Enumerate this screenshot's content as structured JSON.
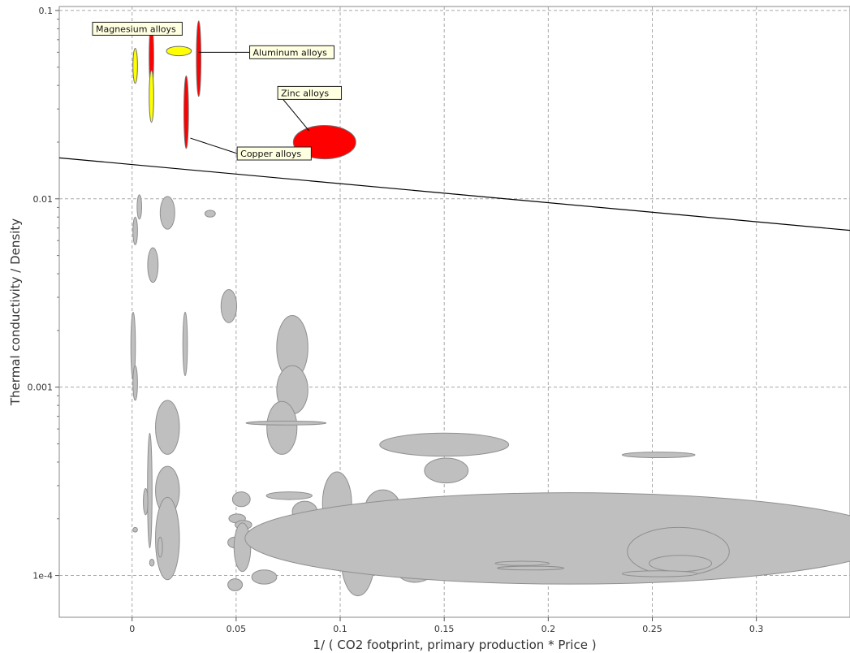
{
  "chart_data": {
    "type": "scatter",
    "subtype": "bubble-ellipses",
    "title": "",
    "xlabel": "1/ ( CO2 footprint, primary production * Price )",
    "ylabel": "Thermal conductivity / Density",
    "xlim": [
      -0.035,
      0.345
    ],
    "ylim": [
      6e-05,
      0.105
    ],
    "yscale": "log",
    "grid": true,
    "x_ticks": [
      {
        "value": 0,
        "label": "0"
      },
      {
        "value": 0.05,
        "label": "0.05"
      },
      {
        "value": 0.1,
        "label": "0.1"
      },
      {
        "value": 0.15,
        "label": "0.15"
      },
      {
        "value": 0.2,
        "label": "0.2"
      },
      {
        "value": 0.25,
        "label": "0.25"
      },
      {
        "value": 0.3,
        "label": "0.3"
      }
    ],
    "y_ticks": [
      {
        "value": 0.0001,
        "label": "1e-4"
      },
      {
        "value": 0.001,
        "label": "0.001"
      },
      {
        "value": 0.01,
        "label": "0.01"
      },
      {
        "value": 0.1,
        "label": "0.1"
      }
    ],
    "colors": {
      "red": "#ff0000",
      "yellow": "#ffff00",
      "gray": "#bfbfbf",
      "grid": "#a8a8a8",
      "label_bg": "#ffffe1"
    },
    "guideline": {
      "x": [
        -0.035,
        0.345
      ],
      "y": [
        0.0165,
        0.0068
      ]
    },
    "annotations": [
      {
        "text": "Magnesium alloys",
        "x": -0.019,
        "y": 0.08,
        "target_x": 0.0095,
        "target_y": 0.075
      },
      {
        "text": "Aluminum alloys",
        "x": 0.0565,
        "y": 0.06,
        "target_x": 0.032,
        "target_y": 0.06
      },
      {
        "text": "Zinc alloys",
        "x": 0.07,
        "y": 0.0365,
        "target_x": 0.085,
        "target_y": 0.023
      },
      {
        "text": "Copper alloys",
        "x": 0.0505,
        "y": 0.0174,
        "target_x": 0.028,
        "target_y": 0.021
      }
    ],
    "series": [
      {
        "name": "",
        "color": "red",
        "points": [
          {
            "x": 0.0093,
            "y_min": 0.038,
            "y_max": 0.085
          },
          {
            "x": 0.032,
            "y_min": 0.035,
            "y_max": 0.088
          },
          {
            "x": 0.026,
            "y_min": 0.0185,
            "y_max": 0.045
          },
          {
            "x": 0.0925,
            "x_min": 0.0775,
            "x_max": 0.1075,
            "y_min": 0.0163,
            "y_max": 0.0245
          }
        ]
      },
      {
        "name": "",
        "color": "yellow",
        "points": [
          {
            "x": 0.0015,
            "y_min": 0.041,
            "y_max": 0.063
          },
          {
            "x": 0.0093,
            "y_min": 0.0255,
            "y_max": 0.048
          },
          {
            "x": 0.0225,
            "x_min": 0.0165,
            "x_max": 0.0285,
            "y_min": 0.0575,
            "y_max": 0.0645
          }
        ]
      },
      {
        "name": "",
        "color": "gray",
        "points": [
          {
            "x": 0.0035,
            "y_min": 0.0078,
            "y_max": 0.0105
          },
          {
            "x": 0.017,
            "x_min": 0.0135,
            "x_max": 0.0205,
            "y_min": 0.0069,
            "y_max": 0.0103
          },
          {
            "x": 0.0375,
            "x_min": 0.035,
            "x_max": 0.04,
            "y_min": 0.008,
            "y_max": 0.0087
          },
          {
            "x": 0.0015,
            "y_min": 0.0057,
            "y_max": 0.008
          },
          {
            "x": 0.01,
            "x_min": 0.0075,
            "x_max": 0.0125,
            "y_min": 0.0036,
            "y_max": 0.0055
          },
          {
            "x": 0.0465,
            "x_min": 0.0425,
            "x_max": 0.05,
            "y_min": 0.0022,
            "y_max": 0.0033
          },
          {
            "x": 0.0255,
            "y_min": 0.00115,
            "y_max": 0.0025
          },
          {
            "x": 0.0005,
            "y_min": 0.0011,
            "y_max": 0.0025
          },
          {
            "x": 0.077,
            "x_min": 0.07,
            "x_max": 0.085,
            "y_min": 0.0011,
            "y_max": 0.0024
          },
          {
            "x": 0.0015,
            "y_min": 0.00085,
            "y_max": 0.0013
          },
          {
            "x": 0.077,
            "x_min": 0.07,
            "x_max": 0.085,
            "y_min": 0.00072,
            "y_max": 0.0013
          },
          {
            "x": 0.072,
            "x_min": 0.065,
            "x_max": 0.0795,
            "y_min": 0.00044,
            "y_max": 0.00084
          },
          {
            "x": 0.074,
            "x_min": 0.055,
            "x_max": 0.0935,
            "y_min": 0.00063,
            "y_max": 0.00066
          },
          {
            "x": 0.017,
            "x_min": 0.011,
            "x_max": 0.0225,
            "y_min": 0.00044,
            "y_max": 0.00085
          },
          {
            "x": 0.0085,
            "y_min": 0.00014,
            "y_max": 0.00057
          },
          {
            "x": 0.017,
            "x_min": 0.011,
            "x_max": 0.0225,
            "y_min": 0.00021,
            "y_max": 0.00038
          },
          {
            "x": 0.0065,
            "y_min": 0.00021,
            "y_max": 0.00029
          },
          {
            "x": 0.017,
            "x_min": 0.011,
            "x_max": 0.0225,
            "y_min": 9.5e-05,
            "y_max": 0.00026
          },
          {
            "x": 0.0015,
            "y_min": 0.00017,
            "y_max": 0.00018
          },
          {
            "x": 0.0135,
            "y_min": 0.000125,
            "y_max": 0.00016
          },
          {
            "x": 0.0095,
            "y_min": 0.000112,
            "y_max": 0.000122
          },
          {
            "x": 0.15,
            "x_min": 0.119,
            "x_max": 0.181,
            "y_min": 0.00043,
            "y_max": 0.00057
          },
          {
            "x": 0.151,
            "x_min": 0.1405,
            "x_max": 0.1615,
            "y_min": 0.00031,
            "y_max": 0.00042
          },
          {
            "x": 0.253,
            "x_min": 0.2355,
            "x_max": 0.2705,
            "y_min": 0.000422,
            "y_max": 0.000452
          },
          {
            "x": 0.0525,
            "x_min": 0.048,
            "x_max": 0.0565,
            "y_min": 0.000232,
            "y_max": 0.000278
          },
          {
            "x": 0.0505,
            "x_min": 0.0465,
            "x_max": 0.0545,
            "y_min": 0.00019,
            "y_max": 0.000212
          },
          {
            "x": 0.0535,
            "x_min": 0.0495,
            "x_max": 0.0575,
            "y_min": 0.000176,
            "y_max": 0.000196
          },
          {
            "x": 0.0495,
            "x_min": 0.046,
            "x_max": 0.053,
            "y_min": 0.00014,
            "y_max": 0.00016
          },
          {
            "x": 0.053,
            "x_min": 0.049,
            "x_max": 0.057,
            "y_min": 0.000105,
            "y_max": 0.00019
          },
          {
            "x": 0.0755,
            "x_min": 0.0645,
            "x_max": 0.0865,
            "y_min": 0.000253,
            "y_max": 0.000278
          },
          {
            "x": 0.083,
            "x_min": 0.077,
            "x_max": 0.089,
            "y_min": 0.000192,
            "y_max": 0.000248
          },
          {
            "x": 0.0985,
            "x_min": 0.0915,
            "x_max": 0.1055,
            "y_min": 0.000165,
            "y_max": 0.000355
          },
          {
            "x": 0.1085,
            "x_min": 0.1005,
            "x_max": 0.1165,
            "y_min": 7.8e-05,
            "y_max": 0.000195
          },
          {
            "x": 0.1065,
            "x_min": 0.099,
            "x_max": 0.114,
            "y_min": 0.00015,
            "y_max": 0.00021
          },
          {
            "x": 0.1205,
            "x_min": 0.112,
            "x_max": 0.129,
            "y_min": 0.00018,
            "y_max": 0.000285
          },
          {
            "x": 0.136,
            "x_min": 0.1265,
            "x_max": 0.1455,
            "y_min": 9.2e-05,
            "y_max": 0.00013
          },
          {
            "x": 0.1665,
            "x_min": 0.1565,
            "x_max": 0.1765,
            "y_min": 0.000128,
            "y_max": 0.000168
          },
          {
            "x": 0.21,
            "x_min": 0.0585,
            "x_max": 0.37,
            "y_min": 9e-05,
            "y_max": 0.000275
          },
          {
            "x": 0.2625,
            "x_min": 0.2385,
            "x_max": 0.2875,
            "y_min": 0.0001,
            "y_max": 0.00018
          },
          {
            "x": 0.2635,
            "x_min": 0.2485,
            "x_max": 0.2785,
            "y_min": 0.000105,
            "y_max": 0.000128
          },
          {
            "x": 0.2535,
            "x_min": 0.2355,
            "x_max": 0.2715,
            "y_min": 9.85e-05,
            "y_max": 0.000106
          },
          {
            "x": 0.1875,
            "x_min": 0.1745,
            "x_max": 0.2005,
            "y_min": 0.000113,
            "y_max": 0.000119
          },
          {
            "x": 0.1915,
            "x_min": 0.1755,
            "x_max": 0.2075,
            "y_min": 0.000107,
            "y_max": 0.000112
          },
          {
            "x": 0.0635,
            "x_min": 0.0575,
            "x_max": 0.0695,
            "y_min": 9e-05,
            "y_max": 0.000107
          },
          {
            "x": 0.0495,
            "x_min": 0.046,
            "x_max": 0.053,
            "y_min": 8.3e-05,
            "y_max": 9.6e-05
          }
        ]
      }
    ]
  }
}
